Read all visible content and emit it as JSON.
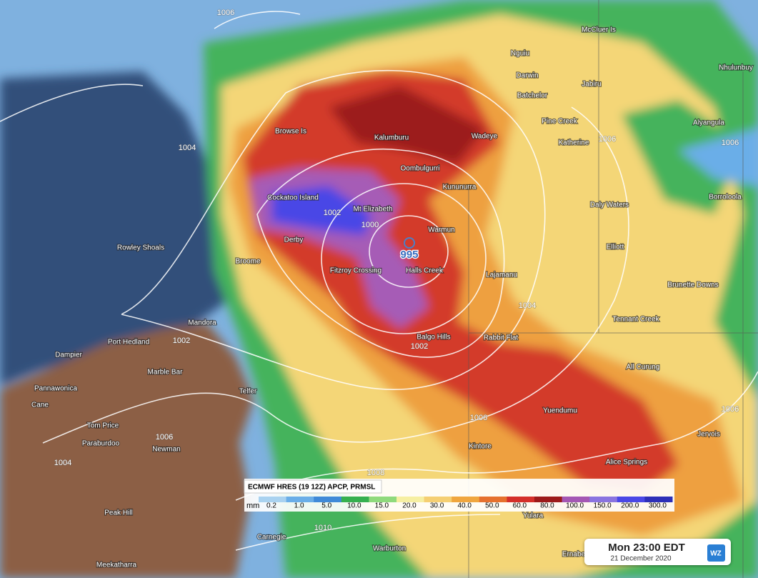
{
  "map": {
    "places": [
      "McCluer Is",
      "Nguiu",
      "Darwin",
      "Nhulunbuy",
      "Batchelor",
      "Jabiru",
      "Pine Creek",
      "Alyangula",
      "Katherine",
      "Wadeye",
      "Browse Is",
      "Kalumburu",
      "Oombulgurri",
      "Kununurra",
      "Borroloola",
      "Cockatoo Island",
      "Mt Elizabeth",
      "Daly Waters",
      "Warmun",
      "Derby",
      "Elliott",
      "Rowley Shoals",
      "Broome",
      "Fitzroy Crossing",
      "Halls Creek",
      "Lajamanu",
      "Brunette Downs",
      "Tennant Creek",
      "Mandora",
      "Balgo Hills",
      "Rabbit Flat",
      "Port Hedland",
      "Dampier",
      "Marble Bar",
      "All Curung",
      "Telfer",
      "Pannawonica",
      "Cane",
      "Yuendumu",
      "Tom Price",
      "Paraburdoo",
      "Jervois",
      "Newman",
      "Kintore",
      "Alice Springs",
      "Peak Hill",
      "Yulara",
      "Carnegie",
      "Warburton",
      "Meekatharra",
      "Ernabella"
    ],
    "isobar_labels": [
      "1006",
      "1004",
      "1002",
      "1000",
      "1002",
      "1002",
      "1004",
      "1006",
      "1006",
      "1004",
      "1008",
      "1010",
      "1006",
      "1006",
      "1006"
    ],
    "low_pressure": "995"
  },
  "legend": {
    "title": "ECMWF HRES (19 12Z) APCP, PRMSL",
    "unit": "mm",
    "labels": [
      "0.2",
      "1.0",
      "5.0",
      "10.0",
      "15.0",
      "20.0",
      "30.0",
      "40.0",
      "50.0",
      "60.0",
      "80.0",
      "100.0",
      "150.0",
      "200.0",
      "300.0"
    ],
    "colors": [
      "#a9d2f0",
      "#6aaee8",
      "#3f8ad8",
      "#35b04f",
      "#8fda7c",
      "#f6efa2",
      "#f5cf72",
      "#f0a63e",
      "#e6712e",
      "#d42f2a",
      "#9c1a1a",
      "#a457b4",
      "#8a74e0",
      "#4a47e6",
      "#2d2fb8"
    ]
  },
  "time_box": {
    "time": "Mon 23:00 EDT",
    "date": "21 December 2020",
    "logo": "WZ"
  }
}
